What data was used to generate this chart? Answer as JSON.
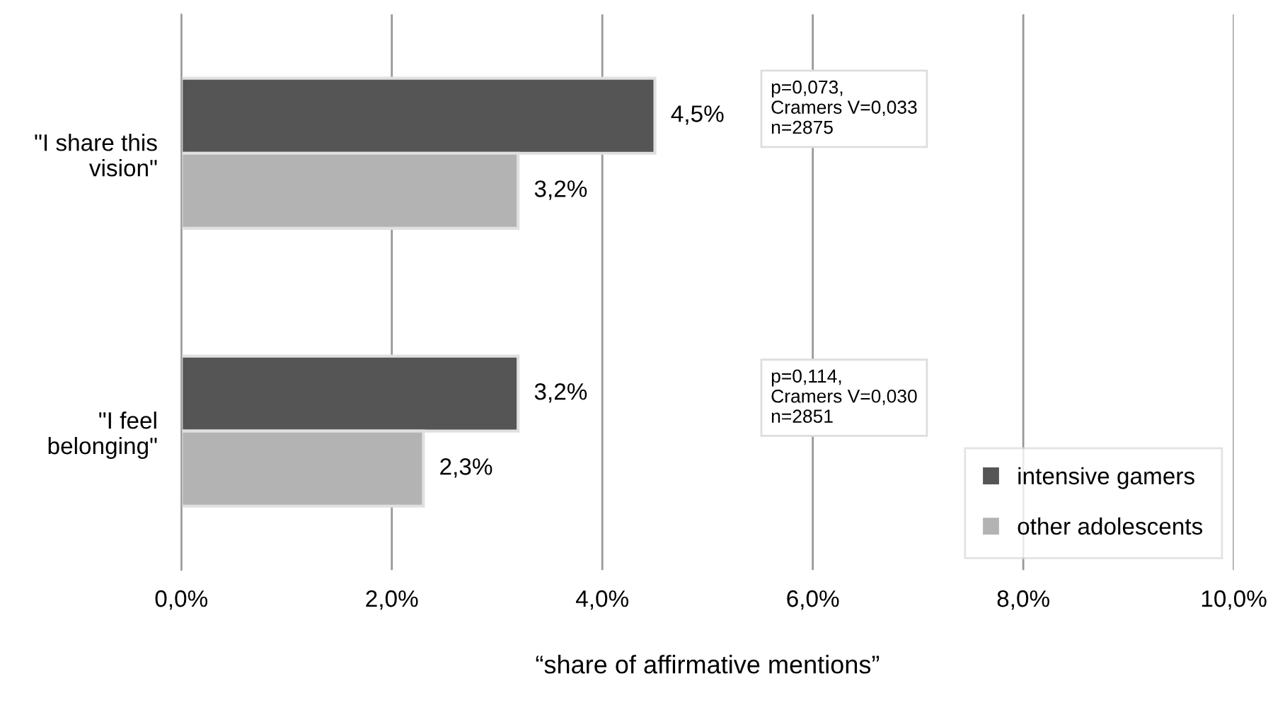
{
  "chart_data": {
    "type": "bar",
    "orientation": "horizontal",
    "xlabel": "“share of affirmative mentions”",
    "categories": [
      "\"I share this\nvision\"",
      "\"I feel\nbelonging\""
    ],
    "series": [
      {
        "name": "intensive gamers",
        "color": "#555555",
        "values": [
          4.5,
          3.2
        ],
        "value_labels": [
          "4,5%",
          "3,2%"
        ]
      },
      {
        "name": "other adolescents",
        "color": "#b3b3b3",
        "values": [
          3.2,
          2.3
        ],
        "value_labels": [
          "3,2%",
          "2,3%"
        ]
      }
    ],
    "xlim": [
      0,
      10
    ],
    "xticks": [
      {
        "value": 0,
        "label": "0,0%"
      },
      {
        "value": 2,
        "label": "2,0%"
      },
      {
        "value": 4,
        "label": "4,0%"
      },
      {
        "value": 6,
        "label": "6,0%"
      },
      {
        "value": 8,
        "label": "8,0%"
      },
      {
        "value": 10,
        "label": "10,0%"
      }
    ],
    "grid": "x",
    "legend": "bottom right",
    "annotations": [
      "p=0,073,\nCramers V=0,033\nn=2875",
      "p=0,114,\nCramers V=0,030\nn=2851"
    ]
  }
}
